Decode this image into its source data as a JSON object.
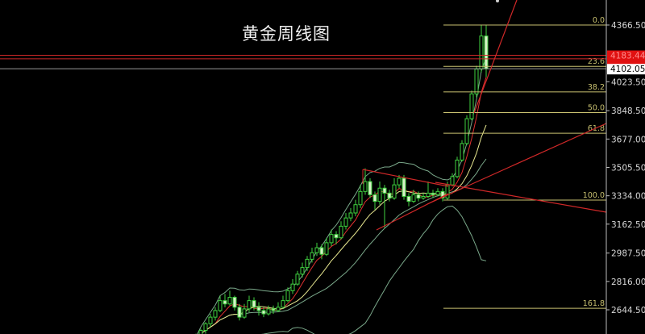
{
  "chart_data": {
    "type": "candlestick",
    "title": "黄金周线图",
    "y_ticks": [
      4366.5,
      4023.5,
      3848.5,
      3677.0,
      3505.5,
      3334.0,
      3162.5,
      2987.5,
      2816.0,
      2644.5
    ],
    "y_tick_labels": [
      "4366.50",
      "4023.50",
      "3848.50",
      "3677.00",
      "3505.50",
      "3334.00",
      "3162.50",
      "2987.50",
      "2816.00",
      "2644.50"
    ],
    "ylim": [
      2470,
      4520
    ],
    "current_price": {
      "value": 4102.05,
      "label": "4102.05"
    },
    "red_levels": [
      {
        "value": 4183.44,
        "label": "4183.44"
      },
      {
        "value": 4162
      }
    ],
    "fibonacci": {
      "high": 4366.5,
      "low": 3308,
      "levels": [
        {
          "ratio": 0.0,
          "label": "0.0"
        },
        {
          "ratio": 0.236,
          "label": "23.6"
        },
        {
          "ratio": 0.382,
          "label": "38.2"
        },
        {
          "ratio": 0.5,
          "label": "50.0"
        },
        {
          "ratio": 0.618,
          "label": "61.8"
        },
        {
          "ratio": 1.0,
          "label": "100.0"
        },
        {
          "ratio": 1.618,
          "label": "161.8"
        }
      ]
    },
    "candles_ohlc": [
      [
        2460,
        2500,
        2450,
        2480
      ],
      [
        2480,
        2530,
        2470,
        2520
      ],
      [
        2520,
        2570,
        2500,
        2560
      ],
      [
        2560,
        2620,
        2540,
        2600
      ],
      [
        2600,
        2660,
        2580,
        2640
      ],
      [
        2640,
        2730,
        2630,
        2700
      ],
      [
        2700,
        2740,
        2660,
        2680
      ],
      [
        2680,
        2760,
        2670,
        2720
      ],
      [
        2720,
        2730,
        2640,
        2660
      ],
      [
        2660,
        2680,
        2580,
        2600
      ],
      [
        2600,
        2680,
        2590,
        2650
      ],
      [
        2650,
        2730,
        2630,
        2700
      ],
      [
        2700,
        2720,
        2640,
        2660
      ],
      [
        2660,
        2690,
        2610,
        2640
      ],
      [
        2640,
        2660,
        2600,
        2620
      ],
      [
        2620,
        2670,
        2610,
        2650
      ],
      [
        2650,
        2670,
        2620,
        2640
      ],
      [
        2640,
        2690,
        2630,
        2660
      ],
      [
        2660,
        2730,
        2650,
        2700
      ],
      [
        2700,
        2780,
        2690,
        2760
      ],
      [
        2760,
        2830,
        2740,
        2800
      ],
      [
        2800,
        2880,
        2790,
        2860
      ],
      [
        2860,
        2930,
        2840,
        2900
      ],
      [
        2900,
        2970,
        2880,
        2950
      ],
      [
        2950,
        3020,
        2930,
        2990
      ],
      [
        2990,
        3050,
        2970,
        3020
      ],
      [
        3020,
        3040,
        2950,
        2980
      ],
      [
        2980,
        3080,
        2970,
        3050
      ],
      [
        3050,
        3130,
        3030,
        3100
      ],
      [
        3100,
        3120,
        3040,
        3080
      ],
      [
        3080,
        3180,
        3070,
        3150
      ],
      [
        3150,
        3230,
        3130,
        3200
      ],
      [
        3200,
        3260,
        3180,
        3230
      ],
      [
        3230,
        3310,
        3210,
        3280
      ],
      [
        3280,
        3400,
        3260,
        3360
      ],
      [
        3360,
        3500,
        3340,
        3420
      ],
      [
        3420,
        3440,
        3320,
        3340
      ],
      [
        3340,
        3360,
        3250,
        3300
      ],
      [
        3300,
        3420,
        3280,
        3380
      ],
      [
        3380,
        3400,
        3140,
        3350
      ],
      [
        3350,
        3370,
        3300,
        3320
      ],
      [
        3320,
        3440,
        3310,
        3400
      ],
      [
        3400,
        3460,
        3380,
        3440
      ],
      [
        3440,
        3460,
        3310,
        3330
      ],
      [
        3330,
        3350,
        3270,
        3300
      ],
      [
        3300,
        3370,
        3290,
        3340
      ],
      [
        3340,
        3360,
        3300,
        3320
      ],
      [
        3320,
        3350,
        3310,
        3330
      ],
      [
        3330,
        3420,
        3320,
        3350
      ],
      [
        3350,
        3370,
        3320,
        3340
      ],
      [
        3340,
        3380,
        3330,
        3360
      ],
      [
        3360,
        3380,
        3300,
        3320
      ],
      [
        3320,
        3420,
        3310,
        3400
      ],
      [
        3400,
        3470,
        3390,
        3450
      ],
      [
        3450,
        3570,
        3440,
        3550
      ],
      [
        3550,
        3670,
        3540,
        3650
      ],
      [
        3650,
        3820,
        3640,
        3800
      ],
      [
        3800,
        3970,
        3790,
        3950
      ],
      [
        3950,
        4120,
        3930,
        4100
      ],
      [
        4100,
        4366.5,
        4080,
        4300
      ],
      [
        4300,
        4366.5,
        4050,
        4102.05
      ]
    ],
    "colors": {
      "background": "#000000",
      "candle": "#3fd23f",
      "bear_fill": "#d8f0c8",
      "ma_fast": "#e03030",
      "ma_slow": "#e8e890",
      "bands": "#7aa88a",
      "trendline": "#d02828",
      "fib": "#c8c070",
      "price_line": "#9a9a9a",
      "red_tag": "#e01010"
    }
  }
}
